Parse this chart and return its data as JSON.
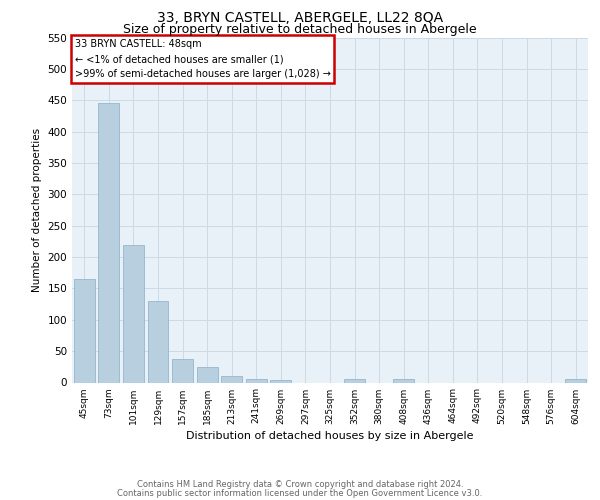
{
  "title": "33, BRYN CASTELL, ABERGELE, LL22 8QA",
  "subtitle": "Size of property relative to detached houses in Abergele",
  "xlabel": "Distribution of detached houses by size in Abergele",
  "ylabel": "Number of detached properties",
  "categories": [
    "45sqm",
    "73sqm",
    "101sqm",
    "129sqm",
    "157sqm",
    "185sqm",
    "213sqm",
    "241sqm",
    "269sqm",
    "297sqm",
    "325sqm",
    "352sqm",
    "380sqm",
    "408sqm",
    "436sqm",
    "464sqm",
    "492sqm",
    "520sqm",
    "548sqm",
    "576sqm",
    "604sqm"
  ],
  "values": [
    165,
    445,
    220,
    130,
    37,
    25,
    10,
    6,
    4,
    0,
    0,
    5,
    0,
    5,
    0,
    0,
    0,
    0,
    0,
    0,
    5
  ],
  "bar_color": "#b8cfe0",
  "bar_edge_color": "#8aafc8",
  "ylim": [
    0,
    550
  ],
  "yticks": [
    0,
    50,
    100,
    150,
    200,
    250,
    300,
    350,
    400,
    450,
    500,
    550
  ],
  "annotation_title": "33 BRYN CASTELL: 48sqm",
  "annotation_line1": "← <1% of detached houses are smaller (1)",
  "annotation_line2": ">99% of semi-detached houses are larger (1,028) →",
  "annotation_box_color": "#ffffff",
  "annotation_box_edge": "#cc0000",
  "footer1": "Contains HM Land Registry data © Crown copyright and database right 2024.",
  "footer2": "Contains public sector information licensed under the Open Government Licence v3.0.",
  "grid_color": "#ccdaE6",
  "plot_bg_color": "#e8f0f8",
  "title_fontsize": 10,
  "subtitle_fontsize": 9
}
